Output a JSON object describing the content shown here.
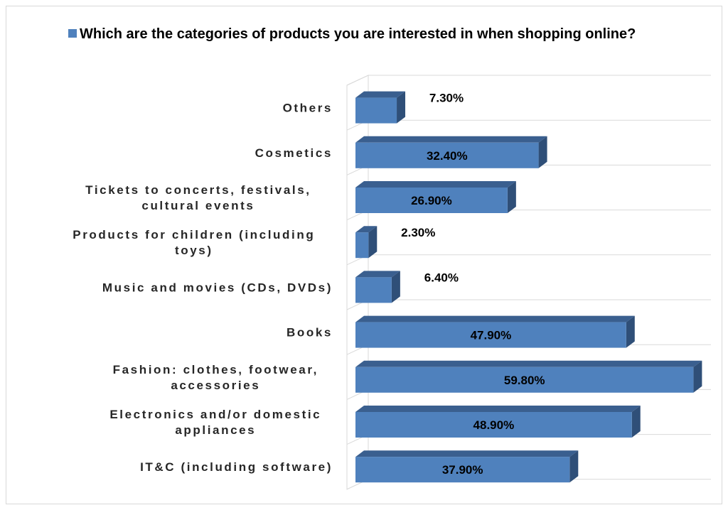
{
  "chart_data": {
    "type": "bar",
    "orientation": "horizontal",
    "three_d": true,
    "legend_title": "Which are the categories of products you are interested in when shopping online?",
    "legend_position": "top",
    "categories": [
      [
        "IT&C (including software)"
      ],
      [
        "Electronics and/or domestic",
        "appliances"
      ],
      [
        "Fashion: clothes, footwear,",
        "accessories"
      ],
      [
        "Books"
      ],
      [
        "Music and movies (CDs, DVDs)"
      ],
      [
        "Products for children (including",
        "toys)"
      ],
      [
        "Tickets to concerts, festivals,",
        "cultural events"
      ],
      [
        "Cosmetics"
      ],
      [
        "Others"
      ]
    ],
    "values": [
      37.9,
      48.9,
      59.8,
      47.9,
      6.4,
      2.3,
      26.9,
      32.4,
      7.3
    ],
    "value_labels": [
      "37.90%",
      "48.90%",
      "59.80%",
      "47.90%",
      "6.40%",
      "2.30%",
      "26.90%",
      "32.40%",
      "7.30%"
    ],
    "xlim": [
      0,
      60
    ],
    "grid": true,
    "colors": {
      "front": "#4f81bd",
      "top": "#3a5f8f",
      "side": "#2f4f78",
      "grid": "#d9d9d9"
    }
  }
}
